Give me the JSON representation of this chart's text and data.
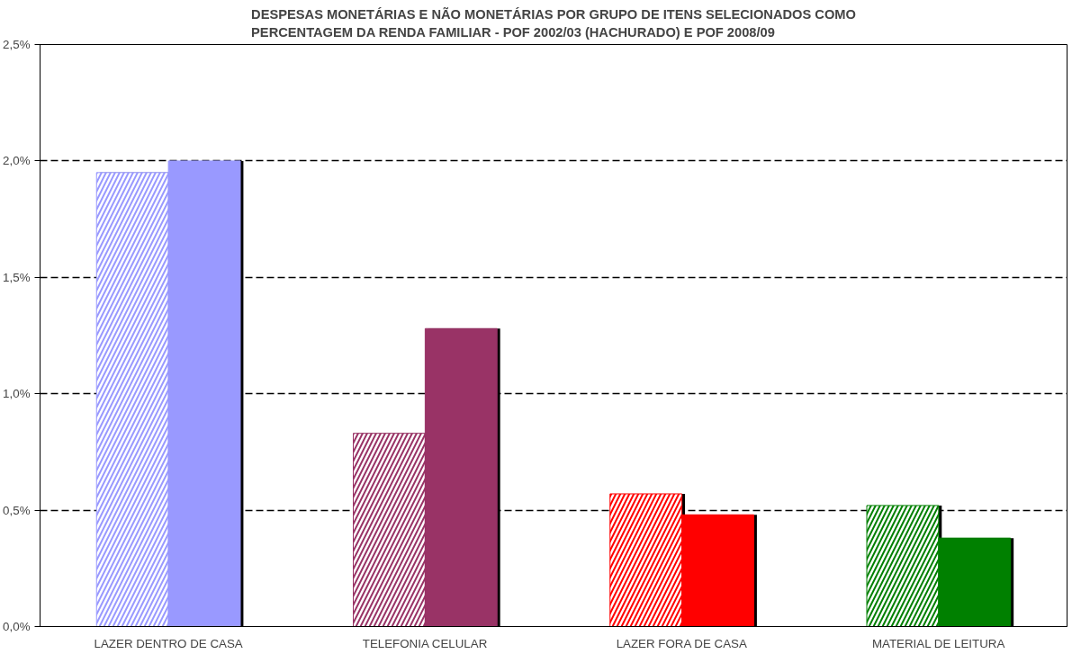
{
  "chart_data": {
    "type": "bar",
    "title": "DESPESAS MONETÁRIAS E NÃO MONETÁRIAS POR GRUPO DE ITENS SELECIONADOS COMO\nPERCENTAGEM DA RENDA FAMILIAR - POF 2002/03 (HACHURADO) E POF 2008/09",
    "categories": [
      "LAZER DENTRO DE CASA",
      "TELEFONIA CELULAR",
      "LAZER FORA DE CASA",
      "MATERIAL DE LEITURA"
    ],
    "series": [
      {
        "colors": [
          "#9999ff",
          "#993366",
          "#ff0000",
          "#008000"
        ],
        "values": [
          1.95,
          0.83,
          0.57,
          0.52
        ]
      },
      {
        "colors": [
          "#9999ff",
          "#993366",
          "#ff0000",
          "#008000"
        ],
        "values": [
          2.0,
          1.28,
          0.48,
          0.38
        ]
      }
    ],
    "ylim": [
      0,
      2.5
    ],
    "yticks": [
      {
        "value": 0,
        "label": "0,0%"
      },
      {
        "value": 0.5,
        "label": "0,5%"
      },
      {
        "value": 1,
        "label": "1,0%"
      },
      {
        "value": 1.5,
        "label": "1,5%"
      },
      {
        "value": 2,
        "label": "2,0%"
      },
      {
        "value": 2.5,
        "label": "2,5%"
      }
    ],
    "grid": "y"
  }
}
